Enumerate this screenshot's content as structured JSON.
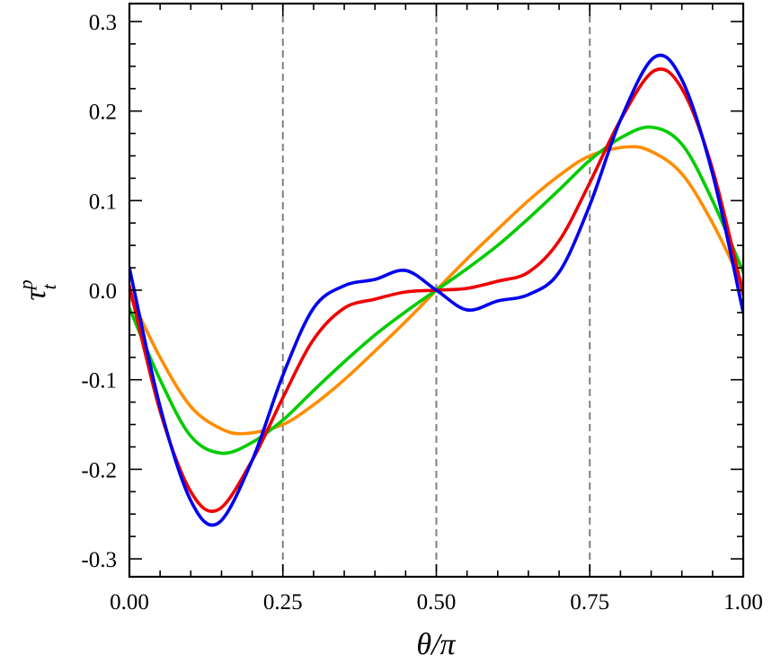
{
  "chart_data": {
    "type": "line",
    "xlabel": "θ/π",
    "ylabel_main": "τ",
    "ylabel_sup": "p",
    "ylabel_sub": "t",
    "xlim": [
      0,
      1
    ],
    "ylim": [
      -0.32,
      0.32
    ],
    "x_ticks": [
      0,
      0.25,
      0.5,
      0.75,
      1.0
    ],
    "x_tick_labels": [
      "0.00",
      "0.25",
      "0.50",
      "0.75",
      "1.00"
    ],
    "y_ticks": [
      -0.3,
      -0.2,
      -0.1,
      0.0,
      0.1,
      0.2,
      0.3
    ],
    "y_tick_labels": [
      "-0.3",
      "-0.2",
      "-0.1",
      "0.0",
      "0.1",
      "0.2",
      "0.3"
    ],
    "x_minor_step": 0.05,
    "y_minor_step": 0.025,
    "vertical_reference_lines": [
      0.25,
      0.5,
      0.75
    ],
    "grid": false,
    "legend": "none",
    "series": [
      {
        "color": "#ff8c00",
        "x": [
          0,
          0.05,
          0.1,
          0.15,
          0.19,
          0.25,
          0.3,
          0.35,
          0.4,
          0.45,
          0.5,
          0.55,
          0.6,
          0.65,
          0.7,
          0.75,
          0.81,
          0.85,
          0.9,
          0.95,
          1.0
        ],
        "y": [
          -0.005,
          -0.075,
          -0.13,
          -0.155,
          -0.16,
          -0.15,
          -0.128,
          -0.1,
          -0.068,
          -0.035,
          0.0,
          0.035,
          0.068,
          0.1,
          0.128,
          0.15,
          0.16,
          0.155,
          0.13,
          0.075,
          0.005
        ]
      },
      {
        "color": "#00cc00",
        "x": [
          0,
          0.05,
          0.1,
          0.15,
          0.2,
          0.25,
          0.3,
          0.35,
          0.4,
          0.45,
          0.5,
          0.55,
          0.6,
          0.65,
          0.7,
          0.75,
          0.8,
          0.85,
          0.9,
          0.95,
          1.0
        ],
        "y": [
          -0.02,
          -0.1,
          -0.163,
          -0.182,
          -0.17,
          -0.145,
          -0.112,
          -0.08,
          -0.05,
          -0.024,
          0.0,
          0.024,
          0.05,
          0.08,
          0.112,
          0.145,
          0.17,
          0.182,
          0.163,
          0.1,
          0.02
        ]
      },
      {
        "color": "#ee0000",
        "x": [
          0,
          0.05,
          0.1,
          0.145,
          0.2,
          0.25,
          0.3,
          0.35,
          0.4,
          0.45,
          0.5,
          0.55,
          0.6,
          0.65,
          0.7,
          0.75,
          0.8,
          0.855,
          0.9,
          0.95,
          1.0
        ],
        "y": [
          0.005,
          -0.135,
          -0.225,
          -0.245,
          -0.19,
          -0.12,
          -0.055,
          -0.02,
          -0.01,
          -0.002,
          0.0,
          0.002,
          0.01,
          0.02,
          0.055,
          0.12,
          0.19,
          0.245,
          0.225,
          0.135,
          -0.005
        ]
      },
      {
        "color": "#0000ee",
        "x": [
          0,
          0.05,
          0.1,
          0.145,
          0.2,
          0.25,
          0.3,
          0.35,
          0.4,
          0.45,
          0.5,
          0.55,
          0.6,
          0.65,
          0.7,
          0.75,
          0.8,
          0.855,
          0.9,
          0.95,
          1.0
        ],
        "y": [
          0.025,
          -0.13,
          -0.235,
          -0.26,
          -0.19,
          -0.095,
          -0.02,
          0.005,
          0.012,
          0.022,
          0.0,
          -0.022,
          -0.012,
          -0.005,
          0.02,
          0.095,
          0.19,
          0.26,
          0.235,
          0.13,
          -0.025
        ]
      }
    ]
  }
}
